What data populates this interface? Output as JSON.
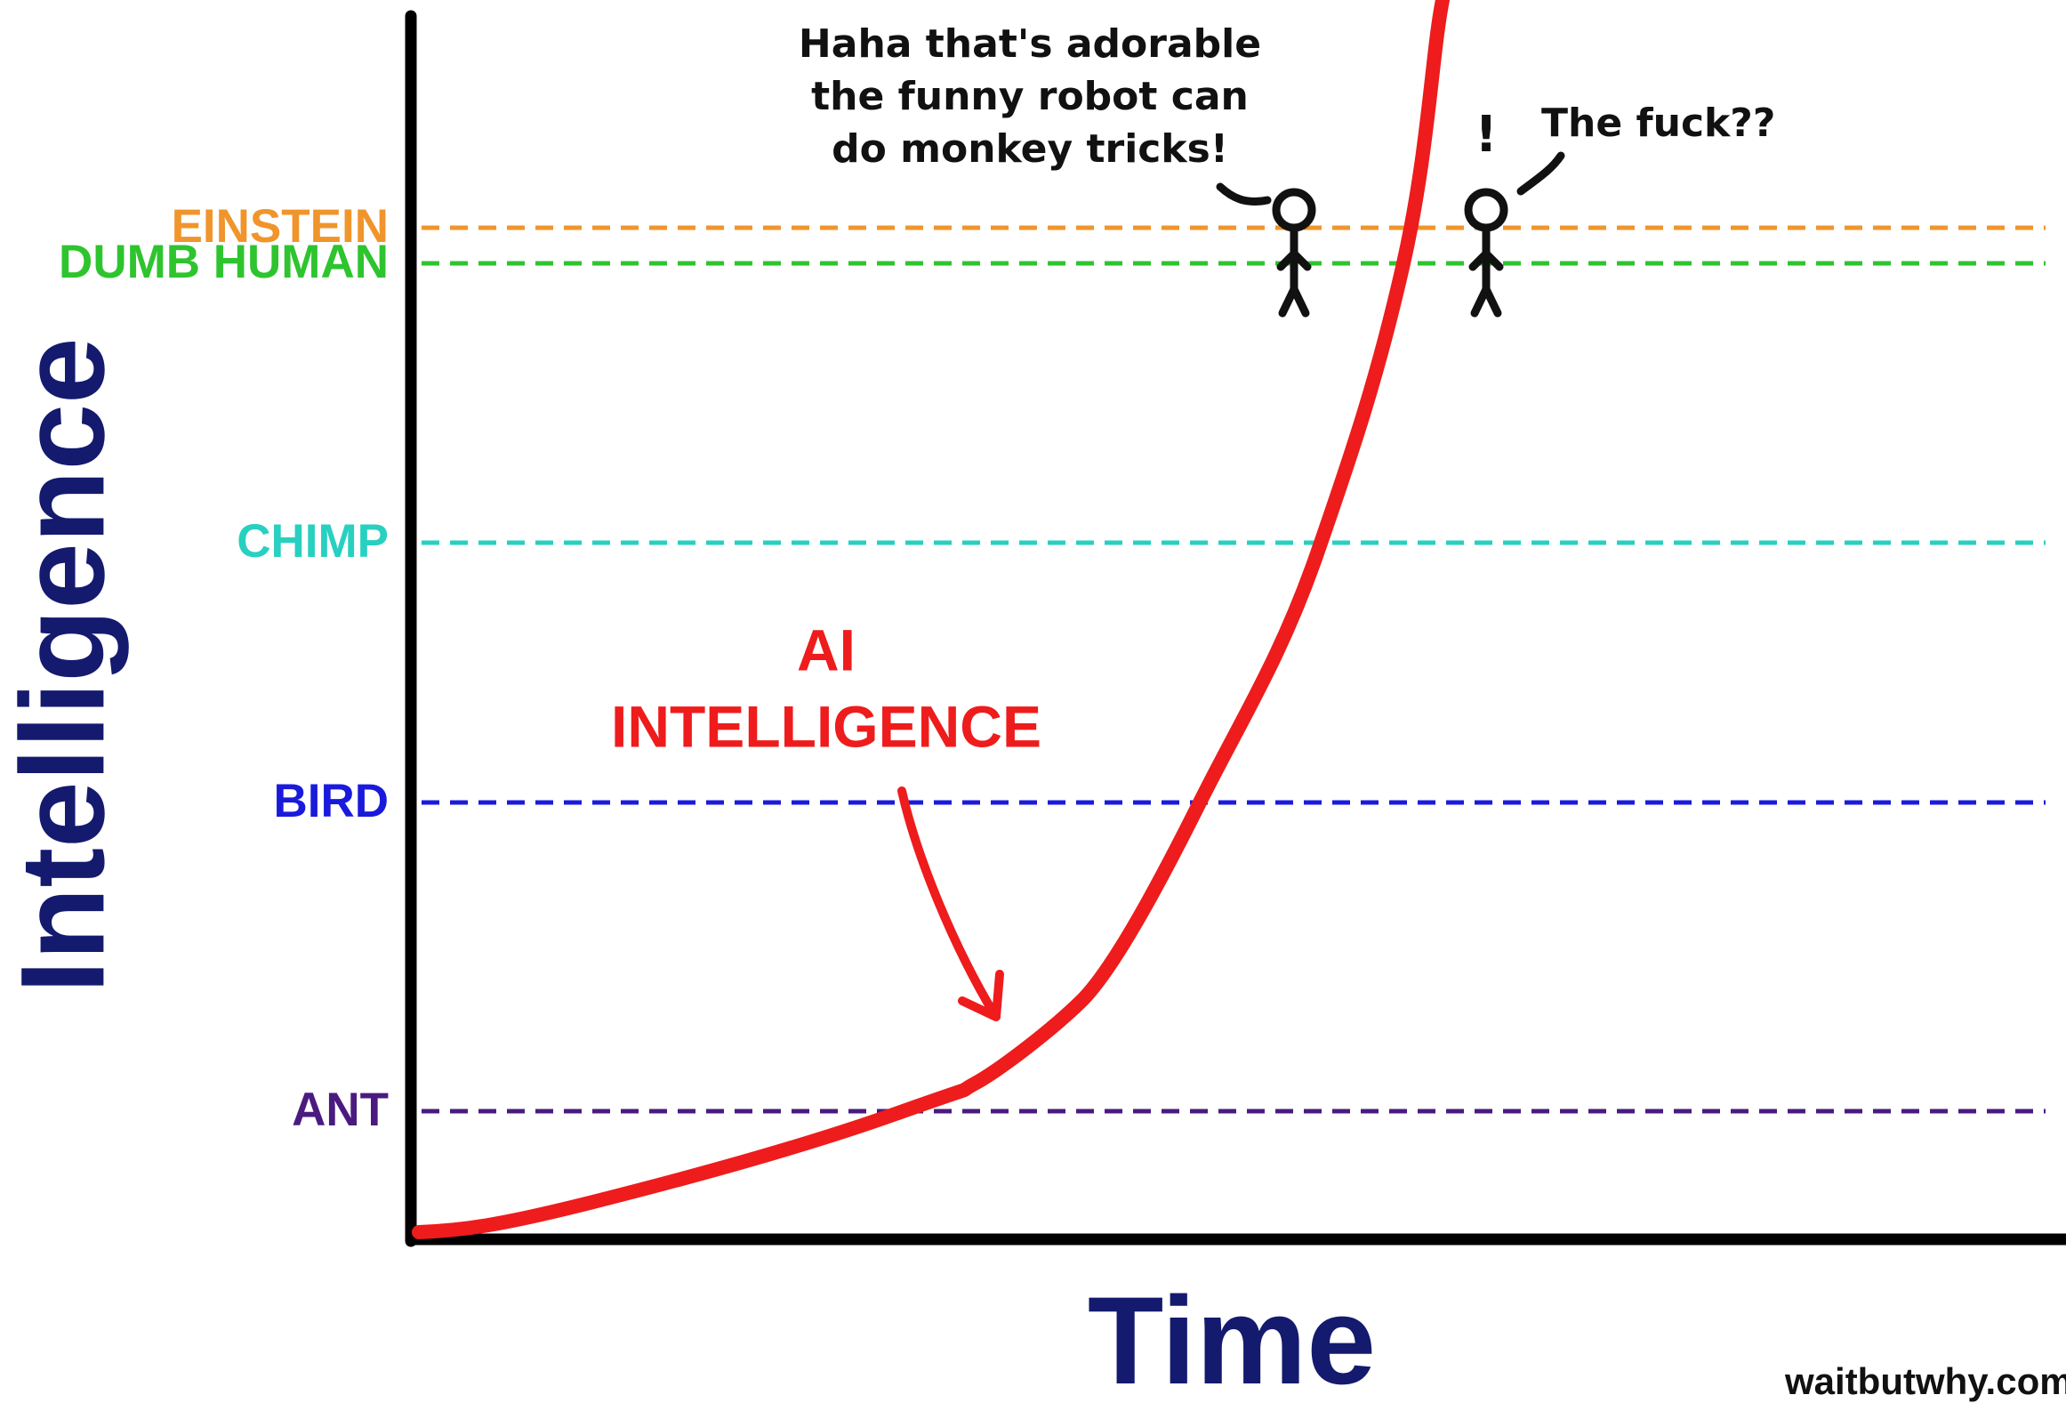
{
  "axes": {
    "y_label": "Intelligence",
    "x_label": "Time"
  },
  "levels": [
    {
      "label": "EINSTEIN",
      "color": "#f0952b"
    },
    {
      "label": "DUMB HUMAN",
      "color": "#2ec42e"
    },
    {
      "label": "CHIMP",
      "color": "#28d0c0"
    },
    {
      "label": "BIRD",
      "color": "#1a1adc"
    },
    {
      "label": "ANT",
      "color": "#4a1a80"
    }
  ],
  "curve": {
    "lines": [
      "AI",
      "INTELLIGENCE"
    ],
    "color": "#ee1c1c"
  },
  "speech": {
    "first": [
      "Haha that's adorable",
      "the funny robot can",
      "do monkey tricks!"
    ],
    "second": "The fuck??",
    "exclaim": "!"
  },
  "source": "waitbutwhy.com"
}
